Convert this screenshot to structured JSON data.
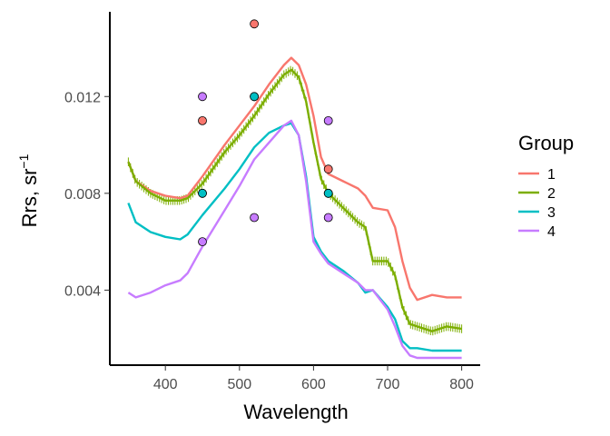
{
  "chart_data": {
    "type": "line",
    "xlabel": "Wavelength",
    "ylabel": "Rrs, sr",
    "ylabel_superscript": "−1",
    "xlim": [
      325,
      825
    ],
    "ylim": [
      0.0009,
      0.0155
    ],
    "x_ticks": [
      400,
      500,
      600,
      700,
      800
    ],
    "y_ticks": [
      0.004,
      0.008,
      0.012
    ],
    "x_tick_labels": [
      "400",
      "500",
      "600",
      "700",
      "800"
    ],
    "y_tick_labels": [
      "0.004",
      "0.008",
      "0.012"
    ],
    "grid": false,
    "legend": {
      "title": "Group",
      "placement": "right",
      "entries": [
        {
          "label": "1",
          "color": "#F8766D"
        },
        {
          "label": "2",
          "color": "#7CAE00"
        },
        {
          "label": "3",
          "color": "#00BFC4"
        },
        {
          "label": "4",
          "color": "#C77CFF"
        }
      ]
    },
    "series": [
      {
        "name": "1",
        "color": "#F8766D",
        "x": [
          350,
          360,
          380,
          400,
          420,
          430,
          450,
          480,
          500,
          520,
          540,
          560,
          570,
          580,
          590,
          600,
          610,
          620,
          640,
          660,
          670,
          680,
          700,
          710,
          720,
          730,
          740,
          760,
          780,
          800
        ],
        "y": [
          0.0093,
          0.0085,
          0.0081,
          0.0079,
          0.0078,
          0.0079,
          0.0087,
          0.01,
          0.0108,
          0.0116,
          0.0125,
          0.0133,
          0.0136,
          0.0133,
          0.0125,
          0.0112,
          0.0095,
          0.0088,
          0.0085,
          0.0082,
          0.0079,
          0.0074,
          0.0073,
          0.0066,
          0.0052,
          0.0041,
          0.0036,
          0.0038,
          0.0037,
          0.0037
        ]
      },
      {
        "name": "2",
        "color": "#7CAE00",
        "x": [
          350,
          360,
          380,
          400,
          420,
          430,
          450,
          480,
          500,
          520,
          540,
          560,
          570,
          580,
          590,
          600,
          610,
          620,
          640,
          660,
          670,
          680,
          700,
          710,
          720,
          730,
          740,
          760,
          780,
          800
        ],
        "y": [
          0.0093,
          0.0085,
          0.008,
          0.0077,
          0.0077,
          0.0078,
          0.0084,
          0.0097,
          0.0104,
          0.0112,
          0.0121,
          0.0129,
          0.0131,
          0.0128,
          0.0118,
          0.0101,
          0.0086,
          0.008,
          0.0074,
          0.0068,
          0.0066,
          0.0052,
          0.0052,
          0.0046,
          0.0033,
          0.0026,
          0.0025,
          0.0023,
          0.0025,
          0.0024
        ]
      },
      {
        "name": "3",
        "color": "#00BFC4",
        "x": [
          350,
          360,
          380,
          400,
          420,
          430,
          450,
          480,
          500,
          520,
          540,
          560,
          570,
          580,
          590,
          600,
          610,
          620,
          640,
          660,
          670,
          680,
          700,
          710,
          720,
          730,
          740,
          760,
          780,
          800
        ],
        "y": [
          0.0076,
          0.0068,
          0.0064,
          0.0062,
          0.0061,
          0.0063,
          0.0071,
          0.0082,
          0.009,
          0.0099,
          0.0105,
          0.0108,
          0.0109,
          0.0104,
          0.0087,
          0.0062,
          0.0056,
          0.0052,
          0.0048,
          0.0043,
          0.0039,
          0.004,
          0.0033,
          0.0028,
          0.0019,
          0.0016,
          0.0016,
          0.0015,
          0.0015,
          0.0015
        ]
      },
      {
        "name": "4",
        "color": "#C77CFF",
        "x": [
          350,
          360,
          380,
          400,
          420,
          430,
          450,
          480,
          500,
          520,
          540,
          560,
          570,
          580,
          590,
          600,
          610,
          620,
          640,
          660,
          670,
          680,
          700,
          710,
          720,
          730,
          740,
          760,
          780,
          800
        ],
        "y": [
          0.0039,
          0.0037,
          0.0039,
          0.0042,
          0.0044,
          0.0047,
          0.0058,
          0.0073,
          0.0083,
          0.0094,
          0.0101,
          0.0108,
          0.011,
          0.0104,
          0.0085,
          0.006,
          0.0055,
          0.0051,
          0.0047,
          0.0043,
          0.004,
          0.004,
          0.0032,
          0.0025,
          0.0017,
          0.0013,
          0.0012,
          0.0012,
          0.0012,
          0.0012
        ]
      }
    ],
    "error_bars": {
      "series": "2",
      "x_range": [
        350,
        800
      ],
      "step": 3,
      "half_width": 0.00018
    },
    "points": [
      {
        "group": "1",
        "x": 450,
        "y": 0.011
      },
      {
        "group": "1",
        "x": 520,
        "y": 0.015
      },
      {
        "group": "1",
        "x": 620,
        "y": 0.009
      },
      {
        "group": "2",
        "x": 450,
        "y": 0.008
      },
      {
        "group": "2",
        "x": 520,
        "y": 0.012
      },
      {
        "group": "2",
        "x": 620,
        "y": 0.008
      },
      {
        "group": "3",
        "x": 450,
        "y": 0.008
      },
      {
        "group": "3",
        "x": 520,
        "y": 0.012
      },
      {
        "group": "3",
        "x": 620,
        "y": 0.008
      },
      {
        "group": "4",
        "x": 450,
        "y": 0.012
      },
      {
        "group": "4",
        "x": 450,
        "y": 0.006
      },
      {
        "group": "4",
        "x": 520,
        "y": 0.007
      },
      {
        "group": "4",
        "x": 620,
        "y": 0.011
      },
      {
        "group": "4",
        "x": 620,
        "y": 0.007
      }
    ]
  }
}
